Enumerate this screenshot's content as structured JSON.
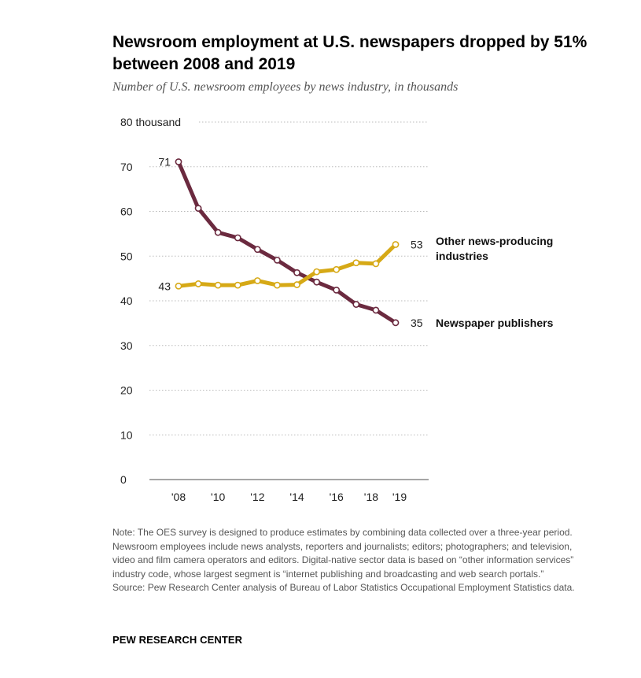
{
  "title": "Newsroom employment at U.S. newspapers dropped by 51% between 2008 and 2019",
  "subtitle": "Number of U.S. newsroom employees by news industry, in thousands",
  "chart_data": {
    "type": "line",
    "x": [
      2008,
      2009,
      2010,
      2011,
      2012,
      2013,
      2014,
      2015,
      2016,
      2017,
      2018,
      2019
    ],
    "x_tick_values": [
      2008,
      2010,
      2012,
      2014,
      2016,
      2018,
      2019
    ],
    "x_tick_labels": [
      "'08",
      "'10",
      "'12",
      "'14",
      "'16",
      "'18",
      "'19"
    ],
    "y_tick_values": [
      0,
      10,
      20,
      30,
      40,
      50,
      60,
      70,
      80
    ],
    "y_tick_labels": [
      "0",
      "10",
      "20",
      "30",
      "40",
      "50",
      "60",
      "70",
      "80 thousand"
    ],
    "ylim": [
      0,
      80
    ],
    "grid": "horizontal dotted",
    "series": [
      {
        "name": "Newspaper publishers",
        "color": "#6b2a3f",
        "values": [
          71.1,
          60.7,
          55.3,
          54.1,
          51.5,
          49.1,
          46.3,
          44.2,
          42.4,
          39.2,
          37.9,
          35.1
        ],
        "start_label": "71",
        "end_label": "35"
      },
      {
        "name": "Other news-producing industries",
        "name_lines": [
          "Other news-producing",
          "industries"
        ],
        "color": "#d6a916",
        "values": [
          43.3,
          43.8,
          43.5,
          43.5,
          44.5,
          43.5,
          43.6,
          46.5,
          47.0,
          48.5,
          48.3,
          52.6
        ],
        "start_label": "43",
        "end_label": "53"
      }
    ]
  },
  "note": {
    "text": "Note: The OES survey is designed to produce estimates by combining data collected over a three-year period. Newsroom employees include news analysts, reporters and journalists; editors; photographers; and television, video and film camera operators and editors. Digital-native sector data is based on “other information services” industry code, whose largest segment is “internet publishing and broadcasting and web search portals.”",
    "source": "Source: Pew Research Center analysis of Bureau of Labor Statistics Occupational Employment Statistics data."
  },
  "brand": "PEW RESEARCH CENTER"
}
